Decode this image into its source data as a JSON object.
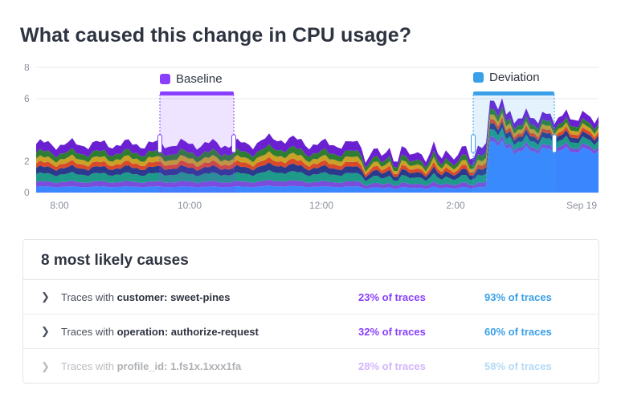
{
  "title": "What caused this change in CPU usage?",
  "chart_data": {
    "type": "area",
    "stacked": true,
    "x_ticks": [
      "8:00",
      "10:00",
      "12:00",
      "2:00",
      "Sep 19"
    ],
    "y_ticks": [
      0,
      2,
      6,
      8
    ],
    "ylim": [
      0,
      8
    ],
    "grid": true,
    "baseline_label": "Baseline",
    "deviation_label": "Deviation",
    "colors": {
      "baseline": "#8a3ffc",
      "deviation": "#3aa0e8",
      "layers": [
        "#3a86ff",
        "#7b4ddb",
        "#1d9a8a",
        "#2b3a8c",
        "#d94a2b",
        "#c9a227",
        "#2e7d32",
        "#6a1fd1"
      ]
    }
  },
  "causes": {
    "header": "8 most likely causes",
    "rows": [
      {
        "prefix": "Traces with ",
        "key": "customer:",
        "value": "sweet-pines",
        "baseline": "23% of traces",
        "deviation": "93% of traces"
      },
      {
        "prefix": "Traces with ",
        "key": "operation:",
        "value": "authorize-request",
        "baseline": "32% of traces",
        "deviation": "60% of traces"
      },
      {
        "prefix": "Traces with ",
        "key": "profile_id:",
        "value": "1.fs1x.1xxx1fa",
        "baseline": "28% of traces",
        "deviation": "58% of traces"
      }
    ]
  }
}
